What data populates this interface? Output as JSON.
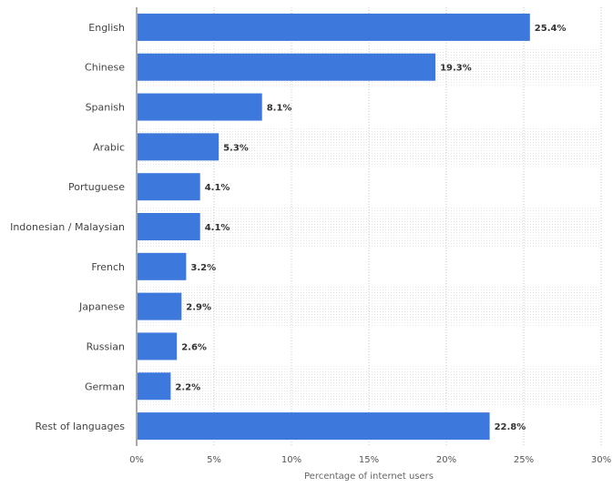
{
  "chart_data": {
    "type": "bar",
    "orientation": "horizontal",
    "categories": [
      "English",
      "Chinese",
      "Spanish",
      "Arabic",
      "Portuguese",
      "Indonesian / Malaysian",
      "French",
      "Japanese",
      "Russian",
      "German",
      "Rest of languages"
    ],
    "values": [
      25.4,
      19.3,
      8.1,
      5.3,
      4.1,
      4.1,
      3.2,
      2.9,
      2.6,
      2.2,
      22.8
    ],
    "value_labels": [
      "25.4%",
      "19.3%",
      "8.1%",
      "5.3%",
      "4.1%",
      "4.1%",
      "3.2%",
      "2.9%",
      "2.6%",
      "2.2%",
      "22.8%"
    ],
    "xlabel": "Percentage of internet users",
    "ylabel": "",
    "xlim": [
      0,
      30
    ],
    "xticks": [
      0,
      5,
      10,
      15,
      20,
      25,
      30
    ],
    "xtick_labels": [
      "0%",
      "5%",
      "10%",
      "15%",
      "20%",
      "25%",
      "30%"
    ],
    "bar_color": "#3d78dc",
    "grid": true,
    "legend": false
  }
}
